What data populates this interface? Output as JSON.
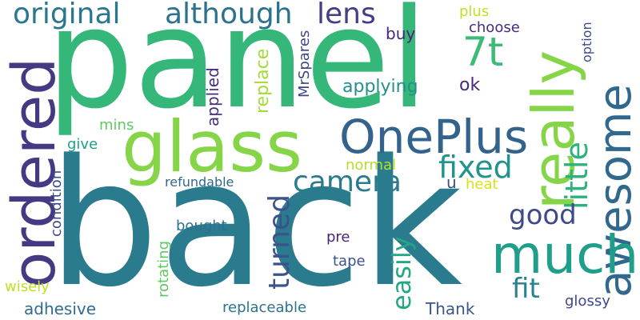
{
  "words": [
    {
      "text": "back",
      "color": "#2a7b8e"
    },
    {
      "text": "panel",
      "color": "#35b779"
    },
    {
      "text": "glass",
      "color": "#86d549"
    },
    {
      "text": "ordered",
      "color": "#443a83"
    },
    {
      "text": "awesome",
      "color": "#31688e"
    },
    {
      "text": "really",
      "color": "#86d549"
    },
    {
      "text": "OnePlus",
      "color": "#33638d"
    },
    {
      "text": "much",
      "color": "#1f9e89"
    },
    {
      "text": "original",
      "color": "#2a788e"
    },
    {
      "text": "although",
      "color": "#2c728e"
    },
    {
      "text": "lens",
      "color": "#433e85"
    },
    {
      "text": "7t",
      "color": "#3bbb75"
    },
    {
      "text": "little",
      "color": "#2db27d"
    },
    {
      "text": "camera",
      "color": "#2a7b8e"
    },
    {
      "text": "fixed",
      "color": "#20938c"
    },
    {
      "text": "turned",
      "color": "#3b528b"
    },
    {
      "text": "easily",
      "color": "#22a884"
    },
    {
      "text": "good",
      "color": "#3e4a89"
    },
    {
      "text": "fit",
      "color": "#26828e"
    },
    {
      "text": "plus",
      "color": "#c2df23"
    },
    {
      "text": "choose",
      "color": "#472d7b"
    },
    {
      "text": "option",
      "color": "#3e4989"
    },
    {
      "text": "buy",
      "color": "#482475"
    },
    {
      "text": "MrSpares",
      "color": "#3f4788"
    },
    {
      "text": "replace",
      "color": "#a5db36"
    },
    {
      "text": "applied",
      "color": "#46307e"
    },
    {
      "text": "applying",
      "color": "#21918c"
    },
    {
      "text": "ok",
      "color": "#482878"
    },
    {
      "text": "mins",
      "color": "#5ec962"
    },
    {
      "text": "give",
      "color": "#1fa187"
    },
    {
      "text": "normal",
      "color": "#b8de29"
    },
    {
      "text": "condition",
      "color": "#3e4c8a"
    },
    {
      "text": "refundable",
      "color": "#31688e"
    },
    {
      "text": "u",
      "color": "#3e4c8a"
    },
    {
      "text": "heat",
      "color": "#d8e219"
    },
    {
      "text": "bought",
      "color": "#2d708e"
    },
    {
      "text": "rotating",
      "color": "#5ec962"
    },
    {
      "text": "pre",
      "color": "#482575"
    },
    {
      "text": "tape",
      "color": "#3b528b"
    },
    {
      "text": "wisely",
      "color": "#c0df25"
    },
    {
      "text": "adhesive",
      "color": "#2f6c8e"
    },
    {
      "text": "replaceable",
      "color": "#2c738e"
    },
    {
      "text": "Thank",
      "color": "#39568c"
    },
    {
      "text": "glossy",
      "color": "#3f4889"
    }
  ]
}
